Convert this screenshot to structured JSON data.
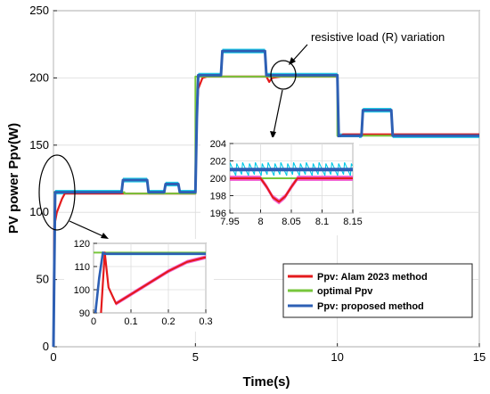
{
  "chart_data": {
    "type": "line",
    "xlabel": "Time(s)",
    "ylabel": "PV power Ppv(W)",
    "xlim": [
      0,
      15
    ],
    "ylim": [
      0,
      250
    ],
    "xticks": [
      "0",
      "5",
      "10",
      "15"
    ],
    "yticks": [
      "0",
      "50",
      "100",
      "150",
      "200",
      "250"
    ],
    "grid": true,
    "legend_position": "bottom-right",
    "annotation": "resistive load (R) variation",
    "colors": {
      "alam": "#e41a1c",
      "optimal": "#77c63b",
      "proposed": "#2d5fb4",
      "proposed_noise": "#00c8e6",
      "alam_noise": "#f04ccf"
    },
    "series": [
      {
        "name": "Ppv: Alam 2023 method",
        "x": [
          0,
          0.03,
          0.12,
          0.3,
          0.4,
          3.0,
          3.05,
          5.0,
          5.03,
          5.1,
          5.25,
          5.4,
          7.5,
          7.6,
          7.7,
          8.0,
          10.0,
          10.05,
          10.2,
          15.0
        ],
        "y": [
          0,
          90,
          100,
          110,
          114,
          114,
          114,
          114,
          168,
          192,
          200,
          201,
          201,
          197,
          200,
          201,
          201,
          156,
          158,
          158
        ]
      },
      {
        "name": "optimal Ppv",
        "x": [
          0,
          2.5,
          2.5,
          5.0,
          5.0,
          10.0,
          10.0,
          15.0
        ],
        "y": [
          115,
          115,
          114,
          114,
          201,
          201,
          157,
          157
        ]
      },
      {
        "name": "Ppv: proposed method",
        "x": [
          0,
          0.03,
          0.06,
          2.4,
          2.45,
          3.3,
          3.35,
          3.9,
          3.95,
          4.4,
          4.45,
          5.0,
          5.05,
          5.1,
          5.9,
          5.95,
          7.45,
          7.5,
          10.0,
          10.05,
          10.1,
          10.85,
          10.9,
          11.9,
          11.95,
          15.0
        ],
        "y": [
          0,
          60,
          115,
          115,
          124,
          124,
          115,
          115,
          121,
          121,
          115,
          115,
          170,
          202,
          202,
          220,
          220,
          202,
          202,
          155,
          157,
          157,
          176,
          176,
          157,
          157
        ]
      }
    ],
    "insets": [
      {
        "xlim": [
          0,
          0.3
        ],
        "ylim": [
          90,
          120
        ],
        "xticks": [
          "0",
          "0.1",
          "0.2",
          "0.3"
        ],
        "yticks": [
          "90",
          "100",
          "110",
          "120"
        ],
        "series": [
          {
            "name": "Ppv: Alam 2023 method",
            "x": [
              0.02,
              0.03,
              0.04,
              0.06,
              0.1,
              0.15,
              0.2,
              0.25,
              0.3
            ],
            "y": [
              90,
              116,
              101,
              94,
              98,
              103,
              108,
              112,
              114
            ]
          },
          {
            "name": "optimal Ppv",
            "x": [
              0,
              0.3
            ],
            "y": [
              116,
              116
            ]
          },
          {
            "name": "Ppv: proposed method",
            "x": [
              0.005,
              0.015,
              0.025,
              0.03,
              0.3
            ],
            "y": [
              90,
              105,
              116,
              115.5,
              115.5
            ]
          }
        ]
      },
      {
        "xlim": [
          7.95,
          8.15
        ],
        "ylim": [
          196,
          204
        ],
        "xticks": [
          "7.95",
          "8",
          "8.05",
          "8.1",
          "8.15"
        ],
        "yticks": [
          "196",
          "198",
          "200",
          "202",
          "204"
        ],
        "series": [
          {
            "name": "Ppv: Alam 2023 method",
            "x": [
              7.95,
              8.0,
              8.01,
              8.02,
              8.03,
              8.04,
              8.05,
              8.06,
              8.15
            ],
            "y": [
              200,
              200,
              199,
              197.8,
              197.3,
              197.9,
              199,
              200,
              200
            ]
          },
          {
            "name": "optimal Ppv",
            "x": [
              7.95,
              8.15
            ],
            "y": [
              200,
              200
            ]
          },
          {
            "name": "Ppv: proposed method",
            "x": [
              7.95,
              8.15
            ],
            "y": [
              201,
              201
            ]
          }
        ]
      }
    ]
  }
}
